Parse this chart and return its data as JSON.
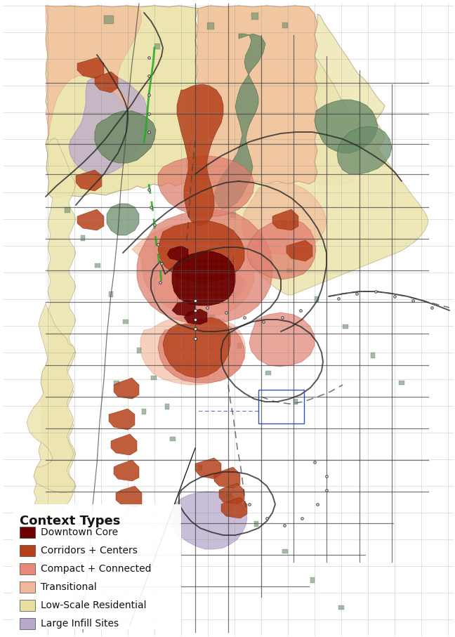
{
  "legend_title": "Context Types",
  "legend_items": [
    {
      "label": "Downtown Core",
      "color": "#6B0000"
    },
    {
      "label": "Corridors + Centers",
      "color": "#B5401A"
    },
    {
      "label": "Compact + Connected",
      "color": "#E8897A"
    },
    {
      "label": "Transitional",
      "color": "#F2B89A"
    },
    {
      "label": "Low-Scale Residential",
      "color": "#E8DFA0"
    },
    {
      "label": "Large Infill Sites",
      "color": "#B8A8CC"
    }
  ],
  "bg_color": "#FFFFFF",
  "fig_width": 6.48,
  "fig_height": 9.07,
  "dpi": 100,
  "legend_title_fontsize": 13,
  "legend_item_fontsize": 10,
  "colors": {
    "downtown_core": "#6B0000",
    "corridors_centers": "#B5401A",
    "compact_connected": "#E08070",
    "transitional": "#F2B89A",
    "low_scale": "#EDE5B0",
    "large_infill": "#B8A8CC",
    "parks_green": "#6B8C6B",
    "road_dark": "#2A2A2A",
    "boundary": "#555555",
    "white_area": "#FFFFFF"
  }
}
